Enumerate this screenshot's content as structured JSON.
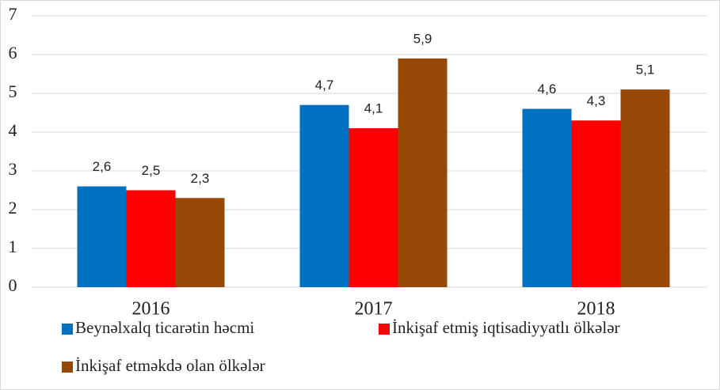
{
  "chart_data": {
    "type": "bar",
    "categories": [
      "2016",
      "2017",
      "2018"
    ],
    "series": [
      {
        "name": "Beynəlxalq ticarətin həcmi",
        "color": "#0070c0",
        "values": [
          2.6,
          4.7,
          4.6
        ],
        "value_labels": [
          "2,6",
          "4,7",
          "4,6"
        ]
      },
      {
        "name": "İnkişaf etmiş iqtisadiyyatlı ölkələr",
        "color": "#ff0000",
        "values": [
          2.5,
          4.1,
          4.3
        ],
        "value_labels": [
          "2,5",
          "4,1",
          "4,3"
        ]
      },
      {
        "name": "İnkişaf etməkdə olan ölkələr",
        "color": "#974806",
        "values": [
          2.3,
          5.9,
          5.1
        ],
        "value_labels": [
          "2,3",
          "5,9",
          "5,1"
        ]
      }
    ],
    "ylim": [
      0,
      7
    ],
    "yticks": [
      0,
      1,
      2,
      3,
      4,
      5,
      6,
      7
    ],
    "grid": true,
    "legend": "bottom"
  }
}
